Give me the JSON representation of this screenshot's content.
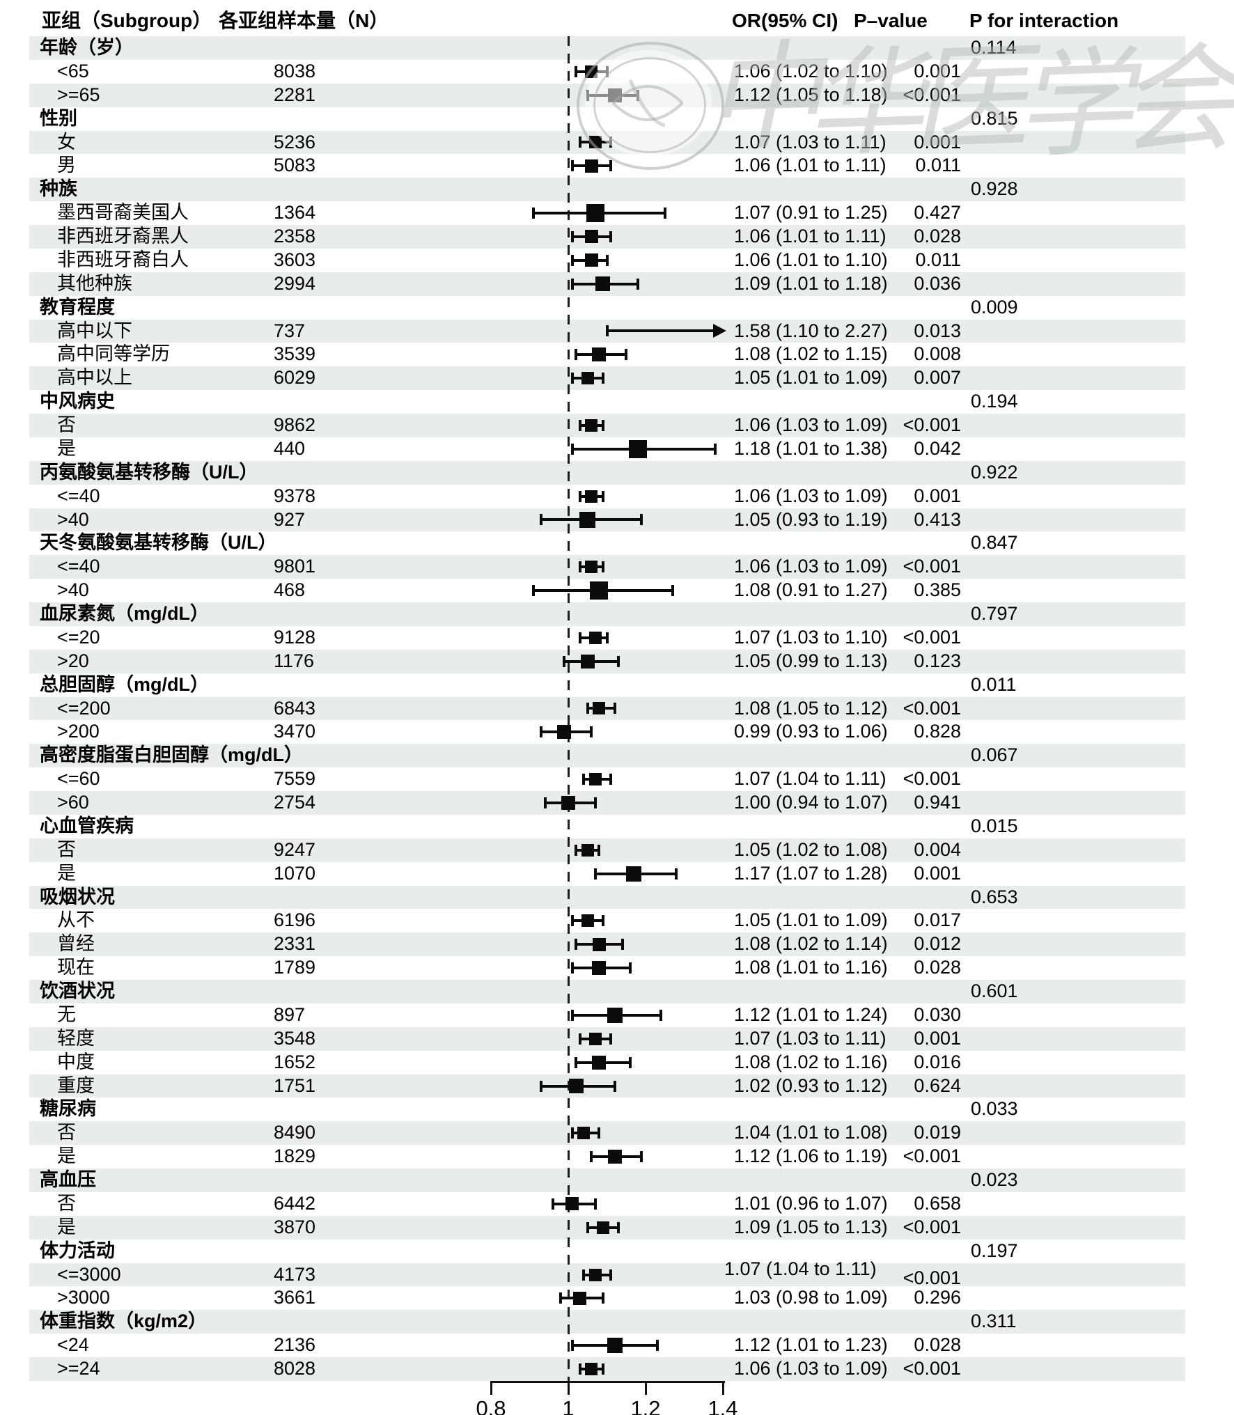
{
  "header": {
    "col_subgroup": "亚组（Subgroup）",
    "col_n": "各亚组样本量（N）",
    "col_or": "OR(95% CI)",
    "col_p": "P–value",
    "col_pint": "P for interaction"
  },
  "axis": {
    "tick_labels": [
      "0.8",
      "1",
      "1.2",
      "1.4"
    ],
    "tick_values": [
      0.8,
      1.0,
      1.2,
      1.4
    ],
    "reference_value": 1.0
  },
  "watermark": {
    "text": "中华医学会",
    "chars": [
      "中",
      "华",
      "医",
      "学",
      "会"
    ],
    "seal": "chinese-medical-association-seal"
  },
  "colors": {
    "stripe": "#e9ede9",
    "marker": "#0b0b0b",
    "text": "#000000",
    "watermark": "#b2b8b3"
  },
  "chart_data": {
    "type": "forest",
    "title": "",
    "or_axis": {
      "ticks": [
        0.8,
        1.0,
        1.2,
        1.4
      ],
      "reference_line": 1.0,
      "arrow_clip_max": 1.4
    },
    "legend_position": "none",
    "grid": "row-stripes",
    "groups": [
      {
        "label": "年龄（岁）",
        "p_interaction": "0.114",
        "items": [
          {
            "label": "<65",
            "n": "8038",
            "or": 1.06,
            "lo": 1.02,
            "hi": 1.1,
            "or_text": "1.06 (1.02 to 1.10)",
            "p": "0.001"
          },
          {
            "label": ">=65",
            "n": "2281",
            "or": 1.12,
            "lo": 1.05,
            "hi": 1.18,
            "or_text": "1.12 (1.05 to 1.18)",
            "p": "<0.001"
          }
        ]
      },
      {
        "label": "性别",
        "p_interaction": "0.815",
        "items": [
          {
            "label": "女",
            "n": "5236",
            "or": 1.07,
            "lo": 1.03,
            "hi": 1.11,
            "or_text": "1.07 (1.03 to 1.11)",
            "p": "0.001"
          },
          {
            "label": "男",
            "n": "5083",
            "or": 1.06,
            "lo": 1.01,
            "hi": 1.11,
            "or_text": "1.06 (1.01 to 1.11)",
            "p": "0.011"
          }
        ]
      },
      {
        "label": "种族",
        "p_interaction": "0.928",
        "items": [
          {
            "label": "墨西哥裔美国人",
            "n": "1364",
            "or": 1.07,
            "lo": 0.91,
            "hi": 1.25,
            "or_text": "1.07 (0.91 to 1.25)",
            "p": "0.427"
          },
          {
            "label": "非西班牙裔黑人",
            "n": "2358",
            "or": 1.06,
            "lo": 1.01,
            "hi": 1.11,
            "or_text": "1.06 (1.01 to 1.11)",
            "p": "0.028"
          },
          {
            "label": "非西班牙裔白人",
            "n": "3603",
            "or": 1.06,
            "lo": 1.01,
            "hi": 1.1,
            "or_text": "1.06 (1.01 to 1.10)",
            "p": "0.011"
          },
          {
            "label": "其他种族",
            "n": "2994",
            "or": 1.09,
            "lo": 1.01,
            "hi": 1.18,
            "or_text": "1.09 (1.01 to 1.18)",
            "p": "0.036"
          }
        ]
      },
      {
        "label": "教育程度",
        "p_interaction": "0.009",
        "items": [
          {
            "label": "高中以下",
            "n": "737",
            "or": 1.58,
            "lo": 1.1,
            "hi": 2.27,
            "or_text": "1.58 (1.10 to 2.27)",
            "p": "0.013",
            "arrow": true
          },
          {
            "label": "高中同等学历",
            "n": "3539",
            "or": 1.08,
            "lo": 1.02,
            "hi": 1.15,
            "or_text": "1.08 (1.02 to 1.15)",
            "p": "0.008"
          },
          {
            "label": "高中以上",
            "n": "6029",
            "or": 1.05,
            "lo": 1.01,
            "hi": 1.09,
            "or_text": "1.05 (1.01 to 1.09)",
            "p": "0.007"
          }
        ]
      },
      {
        "label": "中风病史",
        "p_interaction": "0.194",
        "items": [
          {
            "label": "否",
            "n": "9862",
            "or": 1.06,
            "lo": 1.03,
            "hi": 1.09,
            "or_text": "1.06 (1.03 to 1.09)",
            "p": "<0.001"
          },
          {
            "label": "是",
            "n": "440",
            "or": 1.18,
            "lo": 1.01,
            "hi": 1.38,
            "or_text": "1.18 (1.01 to 1.38)",
            "p": "0.042"
          }
        ]
      },
      {
        "label": "丙氨酸氨基转移酶（U/L）",
        "p_interaction": "0.922",
        "items": [
          {
            "label": "<=40",
            "n": "9378",
            "or": 1.06,
            "lo": 1.03,
            "hi": 1.09,
            "or_text": "1.06 (1.03 to 1.09)",
            "p": "0.001"
          },
          {
            "label": ">40",
            "n": "927",
            "or": 1.05,
            "lo": 0.93,
            "hi": 1.19,
            "or_text": "1.05 (0.93 to 1.19)",
            "p": "0.413"
          }
        ]
      },
      {
        "label": "天冬氨酸氨基转移酶（U/L）",
        "p_interaction": "0.847",
        "items": [
          {
            "label": "<=40",
            "n": "9801",
            "or": 1.06,
            "lo": 1.03,
            "hi": 1.09,
            "or_text": "1.06 (1.03 to 1.09)",
            "p": "<0.001"
          },
          {
            "label": ">40",
            "n": "468",
            "or": 1.08,
            "lo": 0.91,
            "hi": 1.27,
            "or_text": "1.08 (0.91 to 1.27)",
            "p": "0.385"
          }
        ]
      },
      {
        "label": "血尿素氮（mg/dL）",
        "p_interaction": "0.797",
        "items": [
          {
            "label": "<=20",
            "n": "9128",
            "or": 1.07,
            "lo": 1.03,
            "hi": 1.1,
            "or_text": "1.07 (1.03 to 1.10)",
            "p": "<0.001"
          },
          {
            "label": ">20",
            "n": "1176",
            "or": 1.05,
            "lo": 0.99,
            "hi": 1.13,
            "or_text": "1.05 (0.99 to 1.13)",
            "p": "0.123"
          }
        ]
      },
      {
        "label": "总胆固醇（mg/dL）",
        "p_interaction": "0.011",
        "items": [
          {
            "label": "<=200",
            "n": "6843",
            "or": 1.08,
            "lo": 1.05,
            "hi": 1.12,
            "or_text": "1.08 (1.05 to 1.12)",
            "p": "<0.001"
          },
          {
            "label": ">200",
            "n": "3470",
            "or": 0.99,
            "lo": 0.93,
            "hi": 1.06,
            "or_text": "0.99 (0.93 to 1.06)",
            "p": "0.828"
          }
        ]
      },
      {
        "label": "高密度脂蛋白胆固醇（mg/dL）",
        "p_interaction": "0.067",
        "items": [
          {
            "label": "<=60",
            "n": "7559",
            "or": 1.07,
            "lo": 1.04,
            "hi": 1.11,
            "or_text": "1.07 (1.04 to 1.11)",
            "p": "<0.001"
          },
          {
            "label": ">60",
            "n": "2754",
            "or": 1.0,
            "lo": 0.94,
            "hi": 1.07,
            "or_text": "1.00 (0.94 to 1.07)",
            "p": "0.941"
          }
        ]
      },
      {
        "label": "心血管疾病",
        "p_interaction": "0.015",
        "items": [
          {
            "label": "否",
            "n": "9247",
            "or": 1.05,
            "lo": 1.02,
            "hi": 1.08,
            "or_text": "1.05 (1.02 to 1.08)",
            "p": "0.004"
          },
          {
            "label": "是",
            "n": "1070",
            "or": 1.17,
            "lo": 1.07,
            "hi": 1.28,
            "or_text": "1.17 (1.07 to 1.28)",
            "p": "0.001"
          }
        ]
      },
      {
        "label": "吸烟状况",
        "p_interaction": "0.653",
        "items": [
          {
            "label": "从不",
            "n": "6196",
            "or": 1.05,
            "lo": 1.01,
            "hi": 1.09,
            "or_text": "1.05 (1.01 to 1.09)",
            "p": "0.017"
          },
          {
            "label": "曾经",
            "n": "2331",
            "or": 1.08,
            "lo": 1.02,
            "hi": 1.14,
            "or_text": "1.08 (1.02 to 1.14)",
            "p": "0.012"
          },
          {
            "label": "现在",
            "n": "1789",
            "or": 1.08,
            "lo": 1.01,
            "hi": 1.16,
            "or_text": "1.08 (1.01 to 1.16)",
            "p": "0.028"
          }
        ]
      },
      {
        "label": "饮酒状况",
        "p_interaction": "0.601",
        "items": [
          {
            "label": "无",
            "n": "897",
            "or": 1.12,
            "lo": 1.01,
            "hi": 1.24,
            "or_text": "1.12 (1.01 to 1.24)",
            "p": "0.030"
          },
          {
            "label": "轻度",
            "n": "3548",
            "or": 1.07,
            "lo": 1.03,
            "hi": 1.11,
            "or_text": "1.07 (1.03 to 1.11)",
            "p": "0.001"
          },
          {
            "label": "中度",
            "n": "1652",
            "or": 1.08,
            "lo": 1.02,
            "hi": 1.16,
            "or_text": "1.08 (1.02 to 1.16)",
            "p": "0.016"
          },
          {
            "label": "重度",
            "n": "1751",
            "or": 1.02,
            "lo": 0.93,
            "hi": 1.12,
            "or_text": "1.02 (0.93 to 1.12)",
            "p": "0.624"
          }
        ]
      },
      {
        "label": "糖尿病",
        "p_interaction": "0.033",
        "items": [
          {
            "label": "否",
            "n": "8490",
            "or": 1.04,
            "lo": 1.01,
            "hi": 1.08,
            "or_text": "1.04 (1.01 to 1.08)",
            "p": "0.019"
          },
          {
            "label": "是",
            "n": "1829",
            "or": 1.12,
            "lo": 1.06,
            "hi": 1.19,
            "or_text": "1.12 (1.06 to 1.19)",
            "p": "<0.001"
          }
        ]
      },
      {
        "label": "高血压",
        "p_interaction": "0.023",
        "items": [
          {
            "label": "否",
            "n": "6442",
            "or": 1.01,
            "lo": 0.96,
            "hi": 1.07,
            "or_text": "1.01 (0.96 to 1.07)",
            "p": "0.658"
          },
          {
            "label": "是",
            "n": "3870",
            "or": 1.09,
            "lo": 1.05,
            "hi": 1.13,
            "or_text": "1.09 (1.05 to 1.13)",
            "p": "<0.001"
          }
        ]
      },
      {
        "label": "体力活动",
        "p_interaction": "0.197",
        "items": [
          {
            "label": "<=3000",
            "n": "4173",
            "or": 1.07,
            "lo": 1.04,
            "hi": 1.11,
            "or_text": "1.07 (1.04 to 1.11)",
            "p": "<0.001",
            "shift": true
          },
          {
            "label": ">3000",
            "n": "3661",
            "or": 1.03,
            "lo": 0.98,
            "hi": 1.09,
            "or_text": "1.03 (0.98 to 1.09)",
            "p": "0.296"
          }
        ]
      },
      {
        "label": "体重指数（kg/m2）",
        "p_interaction": "0.311",
        "items": [
          {
            "label": "<24",
            "n": "2136",
            "or": 1.12,
            "lo": 1.01,
            "hi": 1.23,
            "or_text": "1.12 (1.01 to 1.23)",
            "p": "0.028"
          },
          {
            "label": ">=24",
            "n": "8028",
            "or": 1.06,
            "lo": 1.03,
            "hi": 1.09,
            "or_text": "1.06 (1.03 to 1.09)",
            "p": "<0.001"
          }
        ]
      }
    ]
  }
}
